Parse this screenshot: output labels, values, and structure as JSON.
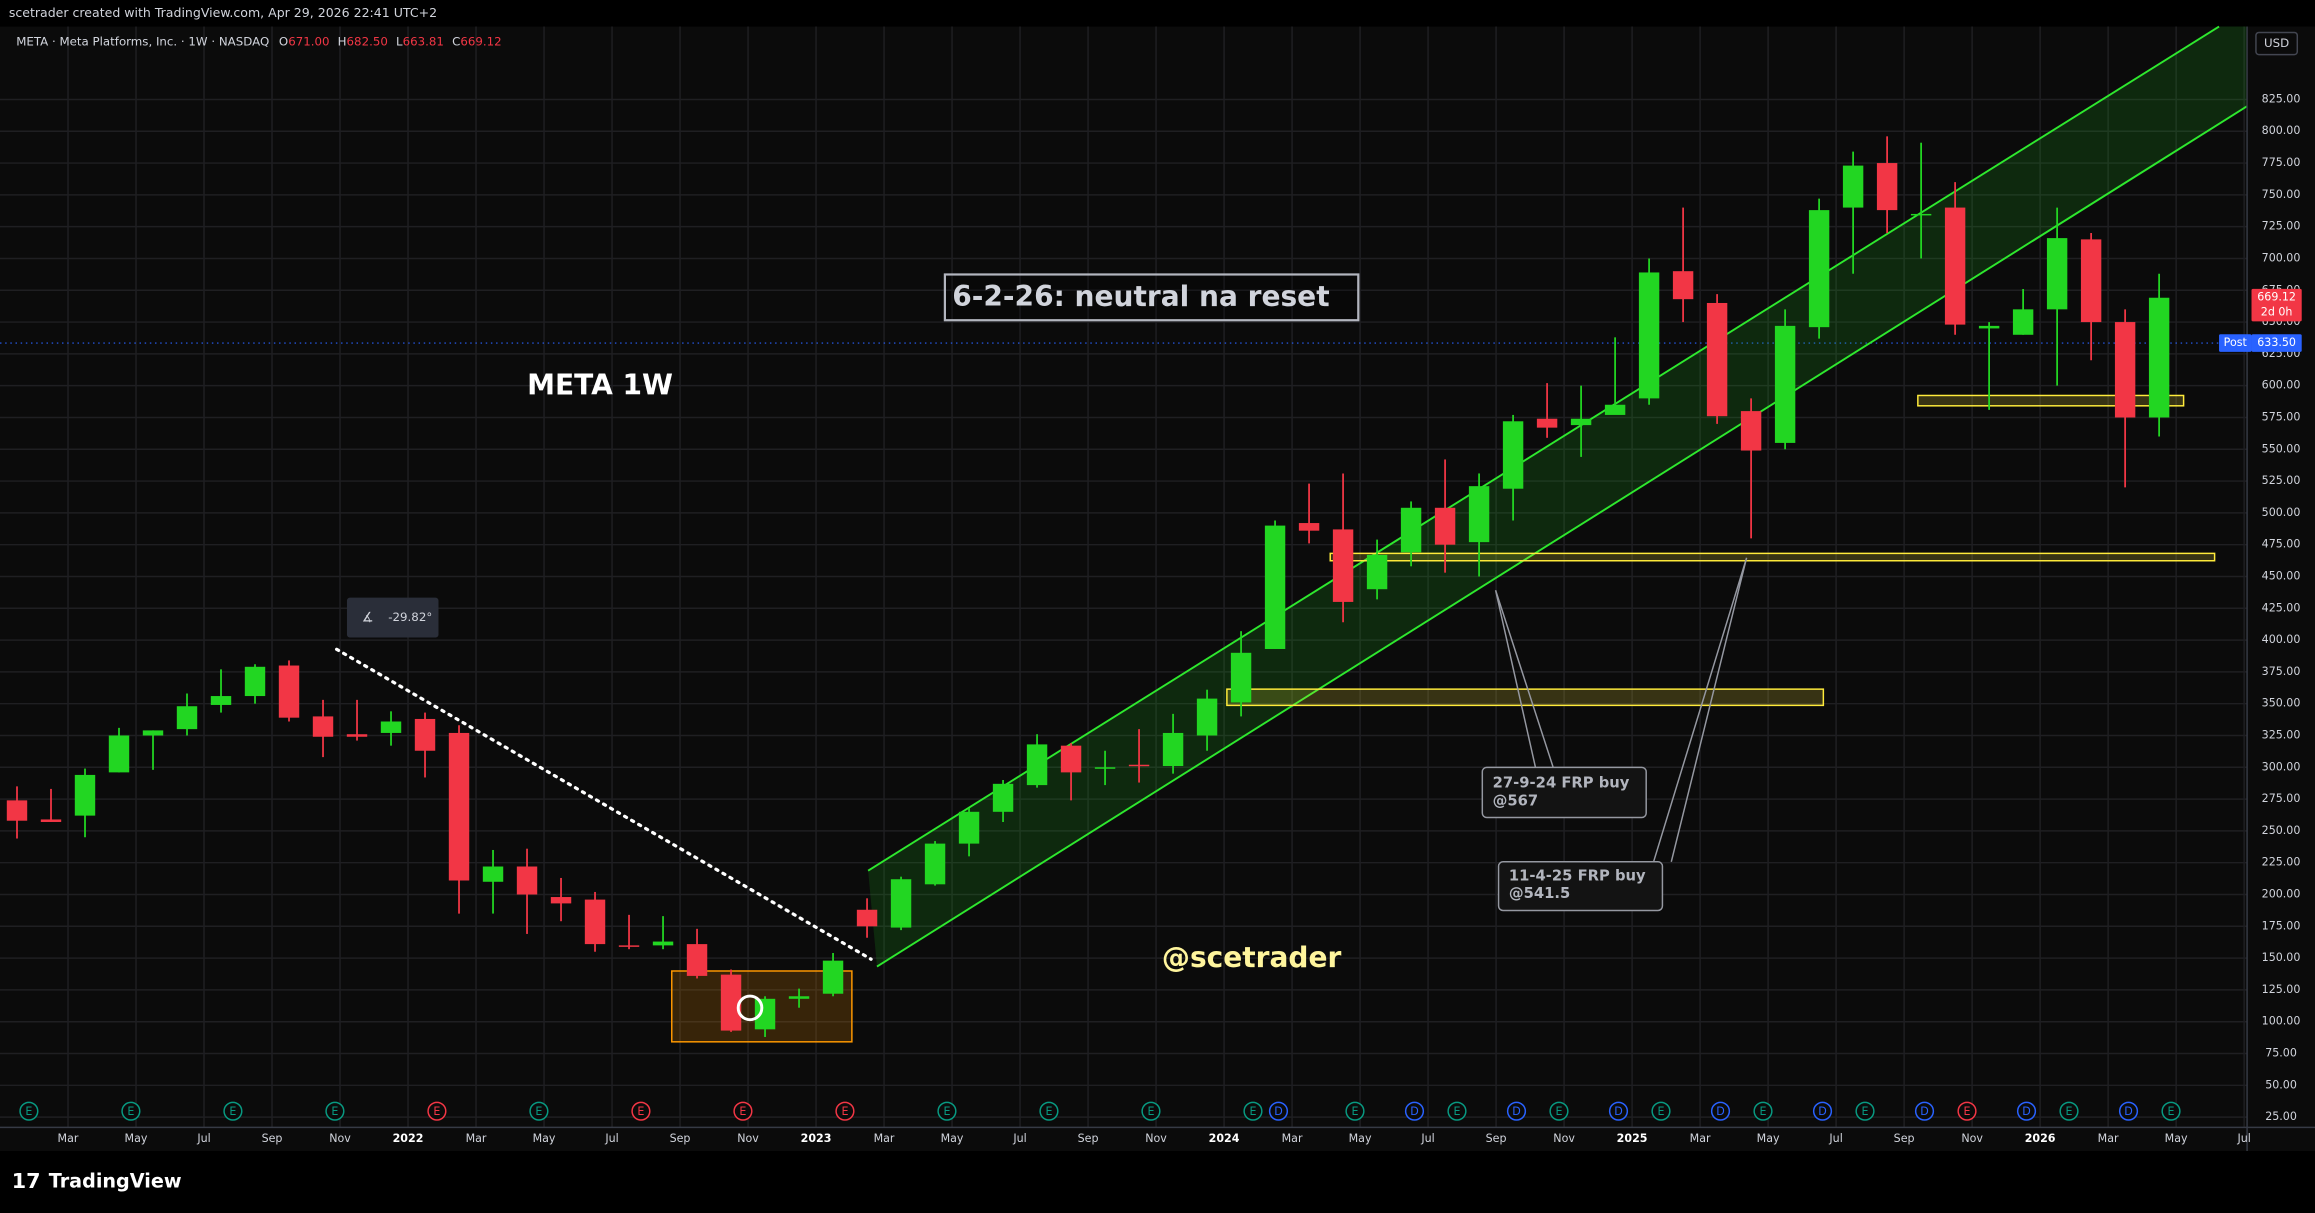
{
  "screenshot": {
    "credit": "scetrader created with TradingView.com, Apr 29, 2026 22:41 UTC+2",
    "brand": "TradingView"
  },
  "chart_data": {
    "type": "candlestick",
    "symbol": "META · Meta Platforms, Inc. · 1W · NASDAQ",
    "ohlc_legend": [
      {
        "label": "O",
        "value": "671.00"
      },
      {
        "label": "H",
        "value": "682.50"
      },
      {
        "label": "L",
        "value": "663.81"
      },
      {
        "label": "C",
        "value": "669.12"
      }
    ],
    "currency": "USD",
    "title": "META 1W",
    "note": "6-2-26: neutral na reset",
    "watermark": "@scetrader",
    "angle_label": "-29.82°",
    "callouts": [
      [
        "27-9-24 FRP buy",
        "@567"
      ],
      [
        "11-4-25 FRP buy",
        "@541.5"
      ]
    ],
    "x": [
      "2021-01",
      "2021-02",
      "2021-03",
      "2021-04",
      "2021-05",
      "2021-06",
      "2021-07",
      "2021-08",
      "2021-09",
      "2021-10",
      "2021-11",
      "2021-12",
      "2022-01",
      "2022-02",
      "2022-03",
      "2022-04",
      "2022-05",
      "2022-06",
      "2022-07",
      "2022-08",
      "2022-09",
      "2022-10",
      "2022-11",
      "2022-12",
      "2023-01",
      "2023-02",
      "2023-03",
      "2023-04",
      "2023-05",
      "2023-06",
      "2023-07",
      "2023-08",
      "2023-09",
      "2023-10",
      "2023-11",
      "2023-12",
      "2024-01",
      "2024-02",
      "2024-03",
      "2024-04",
      "2024-05",
      "2024-06",
      "2024-07",
      "2024-08",
      "2024-09",
      "2024-10",
      "2024-11",
      "2024-12",
      "2025-01",
      "2025-02",
      "2025-03",
      "2025-04",
      "2025-05",
      "2025-06",
      "2025-07",
      "2025-08",
      "2025-09",
      "2025-10",
      "2025-11",
      "2025-12",
      "2026-01",
      "2026-02",
      "2026-03",
      "2026-04"
    ],
    "open": [
      274,
      259,
      262,
      296,
      325,
      330,
      349,
      356,
      380,
      340,
      326,
      327,
      338,
      327,
      210,
      222,
      198,
      196,
      160,
      160,
      161,
      137,
      94,
      118,
      122,
      188,
      174,
      208,
      240,
      265,
      286,
      317,
      299,
      302,
      301,
      325,
      351,
      393,
      492,
      487,
      440,
      469,
      504,
      477,
      519,
      574,
      569,
      577,
      590,
      690,
      665,
      580,
      555,
      646,
      740,
      775,
      735,
      740,
      645,
      640,
      660,
      715,
      650,
      575
    ],
    "high": [
      285,
      283,
      299,
      331,
      329,
      358,
      377,
      381,
      384,
      353,
      353,
      344,
      343,
      333,
      235,
      236,
      213,
      202,
      184,
      183,
      173,
      141,
      120,
      126,
      154,
      197,
      214,
      242,
      268,
      290,
      326,
      319,
      313,
      330,
      342,
      361,
      407,
      494,
      523,
      531,
      479,
      509,
      542,
      531,
      577,
      602,
      600,
      638,
      700,
      740,
      672,
      590,
      660,
      747,
      784,
      796,
      791,
      760,
      650,
      676,
      740,
      720,
      660,
      688
    ],
    "low": [
      244,
      257,
      245,
      296,
      298,
      325,
      343,
      350,
      336,
      308,
      321,
      317,
      292,
      185,
      185,
      169,
      179,
      155,
      157,
      157,
      134,
      92,
      88,
      111,
      120,
      166,
      172,
      207,
      230,
      257,
      284,
      274,
      286,
      288,
      295,
      313,
      340,
      393,
      476,
      414,
      432,
      458,
      453,
      450,
      494,
      559,
      544,
      578,
      585,
      650,
      570,
      480,
      550,
      637,
      688,
      720,
      700,
      640,
      581,
      640,
      600,
      620,
      520,
      560
    ],
    "close": [
      258,
      257,
      294,
      325,
      329,
      348,
      356,
      379,
      339,
      324,
      324,
      336,
      313,
      211,
      222,
      200,
      193,
      161,
      159,
      163,
      136,
      93,
      118,
      120,
      148,
      175,
      212,
      240,
      265,
      287,
      318,
      296,
      300,
      301,
      327,
      354,
      390,
      490,
      486,
      430,
      467,
      504,
      475,
      521,
      572,
      567,
      574,
      585,
      689,
      668,
      576,
      549,
      647,
      738,
      773,
      738,
      735,
      648,
      647,
      660,
      716,
      650,
      575,
      669.12
    ],
    "up_color": "#22d622",
    "down_color": "#f23645",
    "xlim": [
      "2021-01",
      "2026-07"
    ],
    "xticks": [
      {
        "value": "2021-03",
        "label": "Mar"
      },
      {
        "value": "2021-05",
        "label": "May"
      },
      {
        "value": "2021-07",
        "label": "Jul"
      },
      {
        "value": "2021-09",
        "label": "Sep"
      },
      {
        "value": "2021-11",
        "label": "Nov"
      },
      {
        "value": "2022-01",
        "label": "2022"
      },
      {
        "value": "2022-03",
        "label": "Mar"
      },
      {
        "value": "2022-05",
        "label": "May"
      },
      {
        "value": "2022-07",
        "label": "Jul"
      },
      {
        "value": "2022-09",
        "label": "Sep"
      },
      {
        "value": "2022-11",
        "label": "Nov"
      },
      {
        "value": "2023-01",
        "label": "2023"
      },
      {
        "value": "2023-03",
        "label": "Mar"
      },
      {
        "value": "2023-05",
        "label": "May"
      },
      {
        "value": "2023-07",
        "label": "Jul"
      },
      {
        "value": "2023-09",
        "label": "Sep"
      },
      {
        "value": "2023-11",
        "label": "Nov"
      },
      {
        "value": "2024-01",
        "label": "2024"
      },
      {
        "value": "2024-03",
        "label": "Mar"
      },
      {
        "value": "2024-05",
        "label": "May"
      },
      {
        "value": "2024-07",
        "label": "Jul"
      },
      {
        "value": "2024-09",
        "label": "Sep"
      },
      {
        "value": "2024-11",
        "label": "Nov"
      },
      {
        "value": "2025-01",
        "label": "2025"
      },
      {
        "value": "2025-03",
        "label": "Mar"
      },
      {
        "value": "2025-05",
        "label": "May"
      },
      {
        "value": "2025-07",
        "label": "Jul"
      },
      {
        "value": "2025-09",
        "label": "Sep"
      },
      {
        "value": "2025-11",
        "label": "Nov"
      },
      {
        "value": "2026-01",
        "label": "2026"
      },
      {
        "value": "2026-03",
        "label": "Mar"
      },
      {
        "value": "2026-05",
        "label": "May"
      },
      {
        "value": "2026-07",
        "label": "Jul"
      }
    ],
    "ylim": [
      16.9,
      882.3
    ],
    "yticks": [
      {
        "value": 25,
        "label": "25.00"
      },
      {
        "value": 50,
        "label": "50.00"
      },
      {
        "value": 75,
        "label": "75.00"
      },
      {
        "value": 100,
        "label": "100.00"
      },
      {
        "value": 125,
        "label": "125.00"
      },
      {
        "value": 150,
        "label": "150.00"
      },
      {
        "value": 175,
        "label": "175.00"
      },
      {
        "value": 200,
        "label": "200.00"
      },
      {
        "value": 225,
        "label": "225.00"
      },
      {
        "value": 250,
        "label": "250.00"
      },
      {
        "value": 275,
        "label": "275.00"
      },
      {
        "value": 300,
        "label": "300.00"
      },
      {
        "value": 325,
        "label": "325.00"
      },
      {
        "value": 350,
        "label": "350.00"
      },
      {
        "value": 375,
        "label": "375.00"
      },
      {
        "value": 400,
        "label": "400.00"
      },
      {
        "value": 425,
        "label": "425.00"
      },
      {
        "value": 450,
        "label": "450.00"
      },
      {
        "value": 475,
        "label": "475.00"
      },
      {
        "value": 500,
        "label": "500.00"
      },
      {
        "value": 525,
        "label": "525.00"
      },
      {
        "value": 550,
        "label": "550.00"
      },
      {
        "value": 575,
        "label": "575.00"
      },
      {
        "value": 600,
        "label": "600.00"
      },
      {
        "value": 625,
        "label": "625.00"
      },
      {
        "value": 650,
        "label": "650.00"
      },
      {
        "value": 675,
        "label": "675.00"
      },
      {
        "value": 700,
        "label": "700.00"
      },
      {
        "value": 725,
        "label": "725.00"
      },
      {
        "value": 750,
        "label": "750.00"
      },
      {
        "value": 775,
        "label": "775.00"
      },
      {
        "value": 800,
        "label": "800.00"
      },
      {
        "value": 825,
        "label": "825.00"
      }
    ],
    "grid": true,
    "last_price": {
      "value": 669.12,
      "label": "669.12"
    },
    "countdown": "2d 0h",
    "post_market": {
      "name": "Post",
      "value": 633.5,
      "label": "633.50"
    },
    "events": [
      {
        "x": "2021-01",
        "label": "E",
        "color": "#089981"
      },
      {
        "x": "2021-04",
        "label": "E",
        "color": "#089981"
      },
      {
        "x": "2021-07",
        "label": "E",
        "color": "#089981"
      },
      {
        "x": "2021-10",
        "label": "E",
        "color": "#089981"
      },
      {
        "x": "2022-01",
        "label": "E",
        "color": "#f23645"
      },
      {
        "x": "2022-04",
        "label": "E",
        "color": "#089981"
      },
      {
        "x": "2022-07",
        "label": "E",
        "color": "#f23645"
      },
      {
        "x": "2022-10",
        "label": "E",
        "color": "#f23645"
      },
      {
        "x": "2023-01",
        "label": "E",
        "color": "#f23645"
      },
      {
        "x": "2023-04",
        "label": "E",
        "color": "#089981"
      },
      {
        "x": "2023-07",
        "label": "E",
        "color": "#089981"
      },
      {
        "x": "2023-10",
        "label": "E",
        "color": "#089981"
      },
      {
        "x": "2024-01",
        "label": "E",
        "color": "#089981"
      },
      {
        "x": "2024-02",
        "label": "D",
        "color": "#2962ff"
      },
      {
        "x": "2024-04",
        "label": "E",
        "color": "#089981"
      },
      {
        "x": "2024-06",
        "label": "D",
        "color": "#2962ff"
      },
      {
        "x": "2024-07",
        "label": "E",
        "color": "#089981"
      },
      {
        "x": "2024-09",
        "label": "D",
        "color": "#2962ff"
      },
      {
        "x": "2024-10",
        "label": "E",
        "color": "#089981"
      },
      {
        "x": "2024-12",
        "label": "D",
        "color": "#2962ff"
      },
      {
        "x": "2025-01",
        "label": "E",
        "color": "#089981"
      },
      {
        "x": "2025-03",
        "label": "D",
        "color": "#2962ff"
      },
      {
        "x": "2025-04",
        "label": "E",
        "color": "#089981"
      },
      {
        "x": "2025-06",
        "label": "D",
        "color": "#2962ff"
      },
      {
        "x": "2025-07",
        "label": "E",
        "color": "#089981"
      },
      {
        "x": "2025-09",
        "label": "D",
        "color": "#2962ff"
      },
      {
        "x": "2025-10",
        "label": "E",
        "color": "#f23645"
      },
      {
        "x": "2025-12",
        "label": "D",
        "color": "#2962ff"
      },
      {
        "x": "2026-01",
        "label": "E",
        "color": "#089981"
      },
      {
        "x": "2026-03",
        "label": "D",
        "color": "#2962ff"
      },
      {
        "x": "2026-04",
        "label": "E",
        "color": "#089981"
      }
    ]
  }
}
